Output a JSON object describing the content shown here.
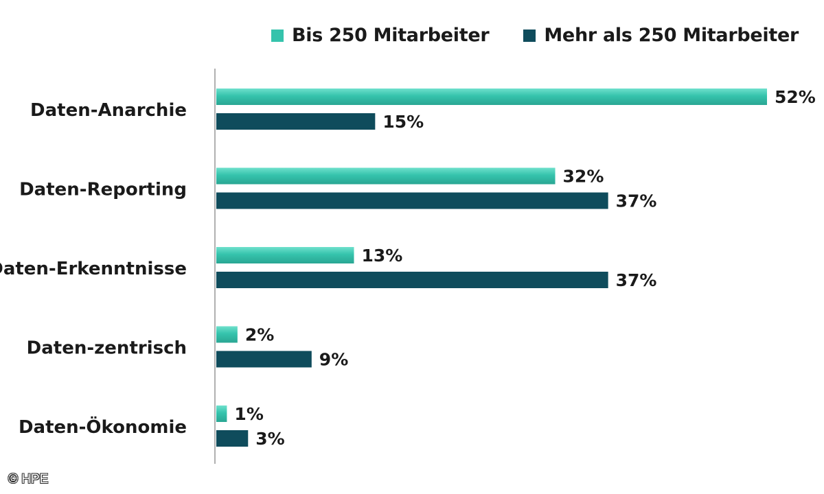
{
  "chart_data": {
    "type": "bar",
    "orientation": "horizontal",
    "categories": [
      "Daten-Anarchie",
      "Daten-Reporting",
      "Daten-Erkenntnisse",
      "Daten-zentrisch",
      "Daten-Ökonomie"
    ],
    "series": [
      {
        "name": "Bis 250 Mitarbeiter",
        "color": "#35c3ac",
        "values": [
          52,
          32,
          13,
          2,
          1
        ],
        "labels": [
          "52%",
          "32%",
          "13%",
          "2%",
          "1%"
        ]
      },
      {
        "name": "Mehr als 250 Mitarbeiter",
        "color": "#0f4c5c",
        "values": [
          15,
          37,
          37,
          9,
          3
        ],
        "labels": [
          "15%",
          "37%",
          "37%",
          "9%",
          "3%"
        ]
      }
    ],
    "xlim": [
      0,
      52
    ],
    "unit": "%",
    "legend_position": "top-right",
    "grid": false
  },
  "credit": "© HPE"
}
